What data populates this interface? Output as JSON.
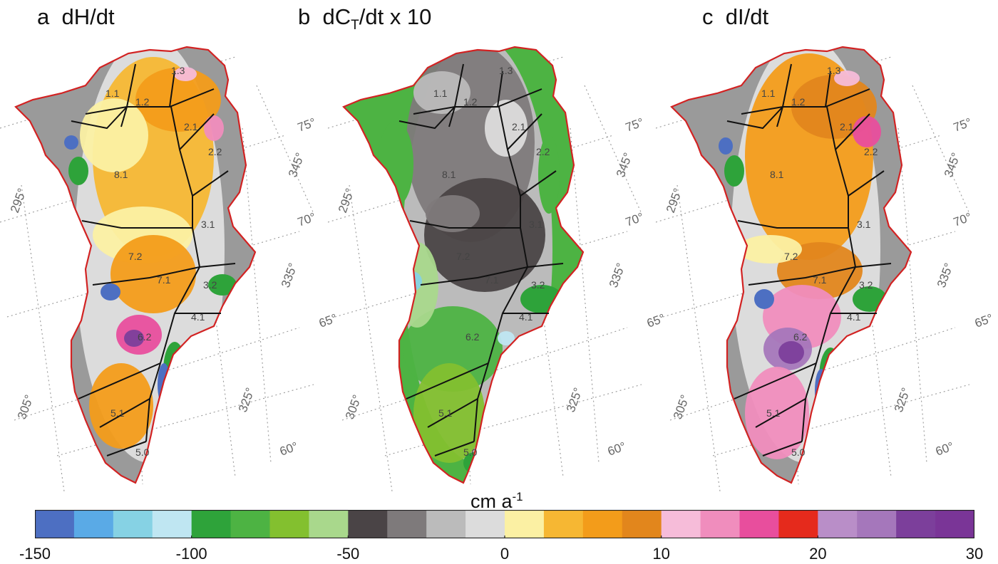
{
  "panels": [
    {
      "letter": "a",
      "title": "dH/dt",
      "region_labels": [
        "1.1",
        "1.2",
        "1.3",
        "2.1",
        "2.2",
        "3.1",
        "3.2",
        "4.1",
        "5.0",
        "5.1",
        "6.2",
        "7.1",
        "7.2",
        "8.1"
      ],
      "lat_labels": [
        "75°",
        "70°",
        "65°",
        "60°"
      ],
      "lon_labels": [
        "295°",
        "305°",
        "325°",
        "335°",
        "345°"
      ]
    },
    {
      "letter": "b",
      "title_main": "dC",
      "title_sub": "T",
      "title_rest": "/dt x 10",
      "region_labels": [
        "1.1",
        "1.2",
        "1.3",
        "2.1",
        "2.2",
        "3.1",
        "3.2",
        "4.1",
        "5.0",
        "5.1",
        "6.2",
        "7.1",
        "7.2",
        "8.1"
      ],
      "lat_labels": [
        "75°",
        "70°",
        "65°",
        "60°"
      ],
      "lon_labels": [
        "295°",
        "305°",
        "325°",
        "335°",
        "345°"
      ]
    },
    {
      "letter": "c",
      "title": "dI/dt",
      "region_labels": [
        "1.1",
        "1.2",
        "1.3",
        "2.1",
        "2.2",
        "3.1",
        "3.2",
        "4.1",
        "5.0",
        "5.1",
        "6.2",
        "7.1",
        "7.2",
        "8.1"
      ],
      "lat_labels": [
        "75°",
        "70°",
        "65°",
        "60°"
      ],
      "lon_labels": [
        "295°",
        "305°",
        "325°",
        "335°",
        "345°"
      ]
    }
  ],
  "colorbar": {
    "unit_main": "cm a",
    "unit_sup": "-1",
    "tick_labels": [
      "-150",
      "-100",
      "-50",
      "0",
      "10",
      "20",
      "30"
    ],
    "colors": [
      "#4d6fc2",
      "#5aaae6",
      "#86d2e4",
      "#bfe6f2",
      "#2ea33a",
      "#4db343",
      "#83c02f",
      "#a9d88c",
      "#4a4446",
      "#7e7a7b",
      "#bbbbbb",
      "#dcdcdc",
      "#fbf0a3",
      "#f6b733",
      "#f39c1a",
      "#e2861c",
      "#f6bcd9",
      "#f08dbd",
      "#e84e9d",
      "#e52a1c",
      "#b98ec8",
      "#a577bb",
      "#7c3f9b",
      "#7a3597"
    ]
  }
}
